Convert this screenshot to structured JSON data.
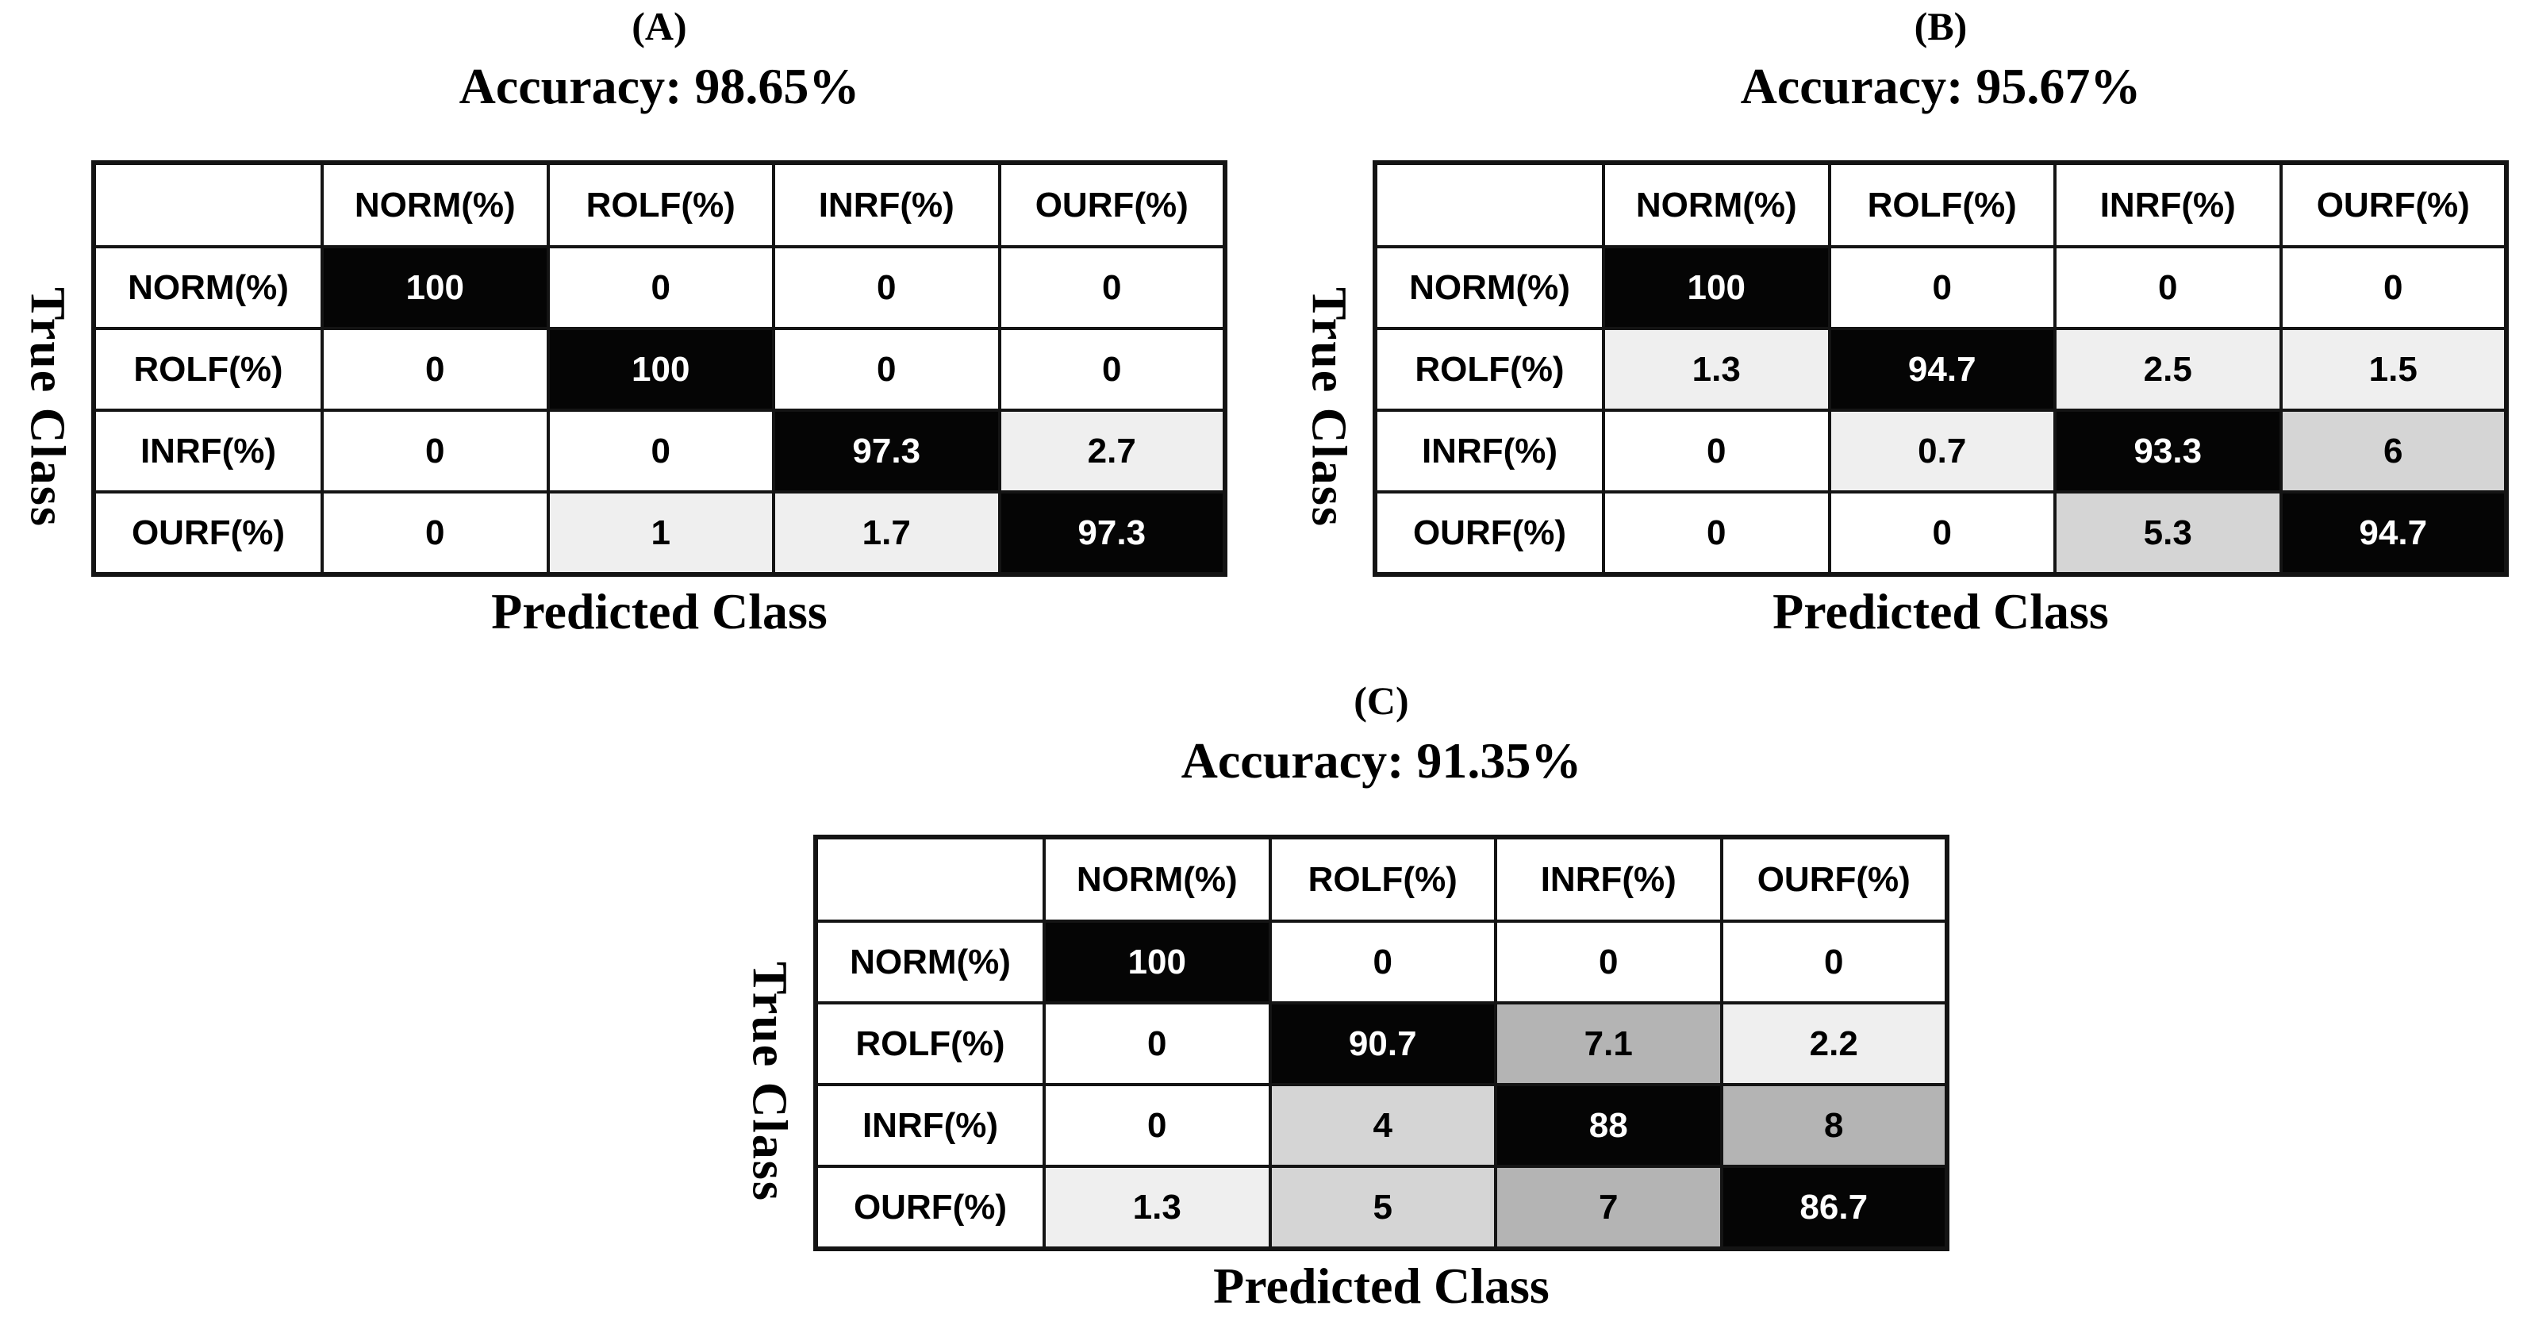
{
  "axis": {
    "true_label": "True Class",
    "predicted_label": "Predicted Class"
  },
  "palette": {
    "diagonal_bg": "#050505",
    "diagonal_text": "#ffffff",
    "grid": "#141414",
    "shade_light": "#efefef",
    "shade_mid": "#d5d5d5",
    "shade_dark": "#b4b4b4",
    "cell_bg": "#ffffff",
    "cell_text": "#000000"
  },
  "panels": [
    {
      "label": "(A)",
      "accuracy": "Accuracy: 98.65%",
      "col_headers": [
        "NORM(%)",
        "ROLF(%)",
        "INRF(%)",
        "OURF(%)"
      ],
      "rows": [
        {
          "label": "NORM(%)",
          "cells": [
            {
              "v": "100",
              "bg": "#050505",
              "fg": "#ffffff"
            },
            {
              "v": "0",
              "bg": "#ffffff",
              "fg": "#000000"
            },
            {
              "v": "0",
              "bg": "#ffffff",
              "fg": "#000000"
            },
            {
              "v": "0",
              "bg": "#ffffff",
              "fg": "#000000"
            }
          ]
        },
        {
          "label": "ROLF(%)",
          "cells": [
            {
              "v": "0",
              "bg": "#ffffff",
              "fg": "#000000"
            },
            {
              "v": "100",
              "bg": "#050505",
              "fg": "#ffffff"
            },
            {
              "v": "0",
              "bg": "#ffffff",
              "fg": "#000000"
            },
            {
              "v": "0",
              "bg": "#ffffff",
              "fg": "#000000"
            }
          ]
        },
        {
          "label": "INRF(%)",
          "cells": [
            {
              "v": "0",
              "bg": "#ffffff",
              "fg": "#000000"
            },
            {
              "v": "0",
              "bg": "#ffffff",
              "fg": "#000000"
            },
            {
              "v": "97.3",
              "bg": "#050505",
              "fg": "#ffffff"
            },
            {
              "v": "2.7",
              "bg": "#efefef",
              "fg": "#000000"
            }
          ]
        },
        {
          "label": "OURF(%)",
          "cells": [
            {
              "v": "0",
              "bg": "#ffffff",
              "fg": "#000000"
            },
            {
              "v": "1",
              "bg": "#efefef",
              "fg": "#000000"
            },
            {
              "v": "1.7",
              "bg": "#efefef",
              "fg": "#000000"
            },
            {
              "v": "97.3",
              "bg": "#050505",
              "fg": "#ffffff"
            }
          ]
        }
      ]
    },
    {
      "label": "(B)",
      "accuracy": "Accuracy: 95.67%",
      "col_headers": [
        "NORM(%)",
        "ROLF(%)",
        "INRF(%)",
        "OURF(%)"
      ],
      "rows": [
        {
          "label": "NORM(%)",
          "cells": [
            {
              "v": "100",
              "bg": "#050505",
              "fg": "#ffffff"
            },
            {
              "v": "0",
              "bg": "#ffffff",
              "fg": "#000000"
            },
            {
              "v": "0",
              "bg": "#ffffff",
              "fg": "#000000"
            },
            {
              "v": "0",
              "bg": "#ffffff",
              "fg": "#000000"
            }
          ]
        },
        {
          "label": "ROLF(%)",
          "cells": [
            {
              "v": "1.3",
              "bg": "#efefef",
              "fg": "#000000"
            },
            {
              "v": "94.7",
              "bg": "#050505",
              "fg": "#ffffff"
            },
            {
              "v": "2.5",
              "bg": "#efefef",
              "fg": "#000000"
            },
            {
              "v": "1.5",
              "bg": "#efefef",
              "fg": "#000000"
            }
          ]
        },
        {
          "label": "INRF(%)",
          "cells": [
            {
              "v": "0",
              "bg": "#ffffff",
              "fg": "#000000"
            },
            {
              "v": "0.7",
              "bg": "#efefef",
              "fg": "#000000"
            },
            {
              "v": "93.3",
              "bg": "#050505",
              "fg": "#ffffff"
            },
            {
              "v": "6",
              "bg": "#d5d5d5",
              "fg": "#000000"
            }
          ]
        },
        {
          "label": "OURF(%)",
          "cells": [
            {
              "v": "0",
              "bg": "#ffffff",
              "fg": "#000000"
            },
            {
              "v": "0",
              "bg": "#ffffff",
              "fg": "#000000"
            },
            {
              "v": "5.3",
              "bg": "#d5d5d5",
              "fg": "#000000"
            },
            {
              "v": "94.7",
              "bg": "#050505",
              "fg": "#ffffff"
            }
          ]
        }
      ]
    },
    {
      "label": "(C)",
      "accuracy": "Accuracy: 91.35%",
      "col_headers": [
        "NORM(%)",
        "ROLF(%)",
        "INRF(%)",
        "OURF(%)"
      ],
      "rows": [
        {
          "label": "NORM(%)",
          "cells": [
            {
              "v": "100",
              "bg": "#050505",
              "fg": "#ffffff"
            },
            {
              "v": "0",
              "bg": "#ffffff",
              "fg": "#000000"
            },
            {
              "v": "0",
              "bg": "#ffffff",
              "fg": "#000000"
            },
            {
              "v": "0",
              "bg": "#ffffff",
              "fg": "#000000"
            }
          ]
        },
        {
          "label": "ROLF(%)",
          "cells": [
            {
              "v": "0",
              "bg": "#ffffff",
              "fg": "#000000"
            },
            {
              "v": "90.7",
              "bg": "#050505",
              "fg": "#ffffff"
            },
            {
              "v": "7.1",
              "bg": "#b4b4b4",
              "fg": "#000000"
            },
            {
              "v": "2.2",
              "bg": "#efefef",
              "fg": "#000000"
            }
          ]
        },
        {
          "label": "INRF(%)",
          "cells": [
            {
              "v": "0",
              "bg": "#ffffff",
              "fg": "#000000"
            },
            {
              "v": "4",
              "bg": "#d5d5d5",
              "fg": "#000000"
            },
            {
              "v": "88",
              "bg": "#050505",
              "fg": "#ffffff"
            },
            {
              "v": "8",
              "bg": "#b4b4b4",
              "fg": "#000000"
            }
          ]
        },
        {
          "label": "OURF(%)",
          "cells": [
            {
              "v": "1.3",
              "bg": "#efefef",
              "fg": "#000000"
            },
            {
              "v": "5",
              "bg": "#d5d5d5",
              "fg": "#000000"
            },
            {
              "v": "7",
              "bg": "#b4b4b4",
              "fg": "#000000"
            },
            {
              "v": "86.7",
              "bg": "#050505",
              "fg": "#ffffff"
            }
          ]
        }
      ]
    }
  ],
  "chart_data": [
    {
      "type": "heatmap",
      "title": "(A) Accuracy: 98.65%",
      "xlabel": "Predicted Class",
      "ylabel": "True Class",
      "x_categories": [
        "NORM(%)",
        "ROLF(%)",
        "INRF(%)",
        "OURF(%)"
      ],
      "y_categories": [
        "NORM(%)",
        "ROLF(%)",
        "INRF(%)",
        "OURF(%)"
      ],
      "matrix": [
        [
          100,
          0,
          0,
          0
        ],
        [
          0,
          100,
          0,
          0
        ],
        [
          0,
          0,
          97.3,
          2.7
        ],
        [
          0,
          1,
          1.7,
          97.3
        ]
      ]
    },
    {
      "type": "heatmap",
      "title": "(B) Accuracy: 95.67%",
      "xlabel": "Predicted Class",
      "ylabel": "True Class",
      "x_categories": [
        "NORM(%)",
        "ROLF(%)",
        "INRF(%)",
        "OURF(%)"
      ],
      "y_categories": [
        "NORM(%)",
        "ROLF(%)",
        "INRF(%)",
        "OURF(%)"
      ],
      "matrix": [
        [
          100,
          0,
          0,
          0
        ],
        [
          1.3,
          94.7,
          2.5,
          1.5
        ],
        [
          0,
          0.7,
          93.3,
          6
        ],
        [
          0,
          0,
          5.3,
          94.7
        ]
      ]
    },
    {
      "type": "heatmap",
      "title": "(C) Accuracy: 91.35%",
      "xlabel": "Predicted Class",
      "ylabel": "True Class",
      "x_categories": [
        "NORM(%)",
        "ROLF(%)",
        "INRF(%)",
        "OURF(%)"
      ],
      "y_categories": [
        "NORM(%)",
        "ROLF(%)",
        "INRF(%)",
        "OURF(%)"
      ],
      "matrix": [
        [
          100,
          0,
          0,
          0
        ],
        [
          0,
          90.7,
          7.1,
          2.2
        ],
        [
          0,
          4,
          88,
          8
        ],
        [
          1.3,
          5,
          7,
          86.7
        ]
      ]
    }
  ]
}
